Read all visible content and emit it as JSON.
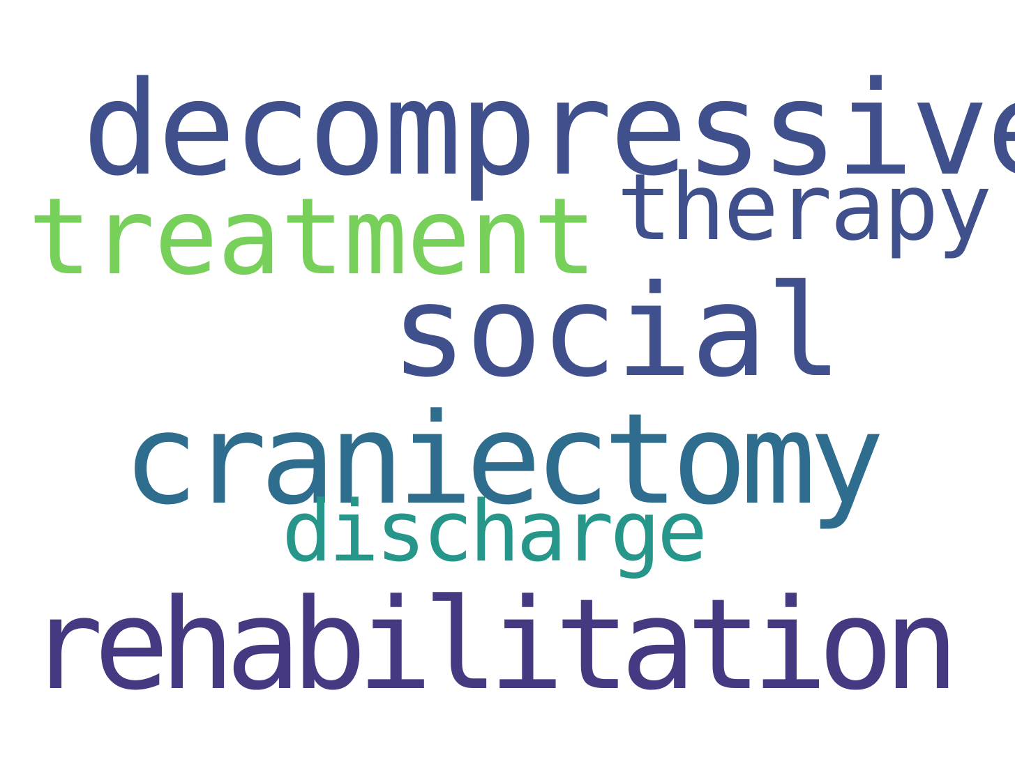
{
  "words": [
    {
      "text": "decompressive",
      "color": "#3f508c"
    },
    {
      "text": "treatment",
      "color": "#77d05a"
    },
    {
      "text": "therapy",
      "color": "#3f508c"
    },
    {
      "text": "social",
      "color": "#3f508c"
    },
    {
      "text": "craniectomy",
      "color": "#2e6d8e"
    },
    {
      "text": "discharge",
      "color": "#26968a"
    },
    {
      "text": "rehabilitation",
      "color": "#453982"
    }
  ]
}
